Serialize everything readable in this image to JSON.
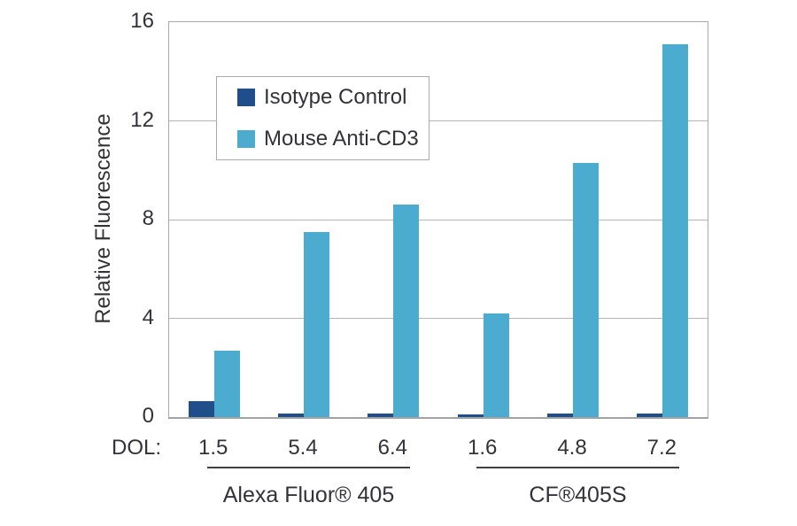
{
  "chart_data": {
    "type": "bar",
    "title": "",
    "ylabel": "Relative Fluorescence",
    "ylim": [
      0,
      16
    ],
    "yticks": [
      0,
      4,
      8,
      12,
      16
    ],
    "grid": "horizontal",
    "legend_position": "upper-left-inside",
    "x_prefix_label": "DOL:",
    "categories": [
      "1.5",
      "5.4",
      "6.4",
      "1.6",
      "4.8",
      "7.2"
    ],
    "series": [
      {
        "name": "Isotype Control",
        "color": "#1f4e8b",
        "values": [
          0.65,
          0.15,
          0.15,
          0.1,
          0.15,
          0.15
        ]
      },
      {
        "name": "Mouse Anti-CD3",
        "color": "#4caccf",
        "values": [
          2.7,
          7.5,
          8.6,
          4.2,
          10.3,
          15.1
        ]
      }
    ],
    "group_sections": [
      {
        "label": "Alexa Fluor® 405",
        "categories": [
          "1.5",
          "5.4",
          "6.4"
        ]
      },
      {
        "label": "CF®405S",
        "categories": [
          "1.6",
          "4.8",
          "7.2"
        ]
      }
    ]
  },
  "colors": {
    "gridline": "#b5b5b5",
    "plot_border": "#a9a9a9",
    "underline": "#404040",
    "text": "#32323a"
  }
}
